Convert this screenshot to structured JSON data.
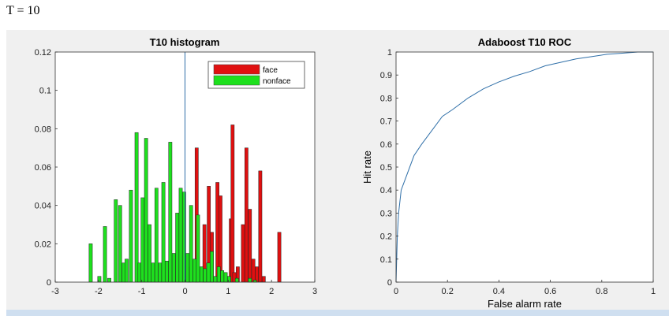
{
  "page": {
    "heading": "T = 10"
  },
  "colors": {
    "face": "#e01010",
    "nonface": "#1ee01e",
    "roc_line": "#2f6fa8",
    "figure_bg": "#f0f0f0"
  },
  "chart_data": [
    {
      "type": "bar",
      "title": "T10  histogram",
      "xlabel": "",
      "ylabel": "",
      "xlim": [
        -3,
        3
      ],
      "ylim": [
        0,
        0.12
      ],
      "xticks": [
        "-3",
        "-2",
        "-1",
        "0",
        "1",
        "2",
        "3"
      ],
      "yticks": [
        "0",
        "0.02",
        "0.04",
        "0.06",
        "0.08",
        "0.1",
        "0.12"
      ],
      "legend_position": "top-right",
      "threshold_x": 0,
      "bin_width": 0.077,
      "series": [
        {
          "name": "face",
          "color": "#e01010",
          "x": [
            0.1,
            0.27,
            0.45,
            0.55,
            0.62,
            0.75,
            0.82,
            0.9,
            0.98,
            1.06,
            1.1,
            1.14,
            1.22,
            1.34,
            1.42,
            1.5,
            1.58,
            1.66,
            1.74,
            1.82,
            2.18
          ],
          "values": [
            0.008,
            0.07,
            0.03,
            0.05,
            0.026,
            0.052,
            0.045,
            0.005,
            0.003,
            0.033,
            0.082,
            0.005,
            0.008,
            0.03,
            0.07,
            0.038,
            0.012,
            0.008,
            0.058,
            0.003,
            0.026
          ]
        },
        {
          "name": "nonface",
          "color": "#1ee01e",
          "x": [
            -2.18,
            -1.98,
            -1.85,
            -1.75,
            -1.6,
            -1.5,
            -1.42,
            -1.35,
            -1.25,
            -1.12,
            -1.05,
            -0.98,
            -0.9,
            -0.82,
            -0.74,
            -0.66,
            -0.58,
            -0.5,
            -0.42,
            -0.34,
            -0.26,
            -0.18,
            -0.1,
            -0.02,
            0.06,
            0.14,
            0.22,
            0.3,
            0.38,
            0.46,
            0.54,
            0.62,
            0.7,
            0.78,
            0.86,
            0.94,
            1.02,
            1.2,
            1.5,
            1.62
          ],
          "values": [
            0.02,
            0.003,
            0.029,
            0.002,
            0.043,
            0.04,
            0.01,
            0.012,
            0.048,
            0.078,
            0.01,
            0.044,
            0.075,
            0.03,
            0.01,
            0.049,
            0.01,
            0.052,
            0.011,
            0.073,
            0.015,
            0.036,
            0.049,
            0.047,
            0.015,
            0.04,
            0.012,
            0.035,
            0.008,
            0.007,
            0.01,
            0.016,
            0.003,
            0.008,
            0.006,
            0.005,
            0.003,
            0.002,
            0.002,
            0.001
          ]
        }
      ]
    },
    {
      "type": "line",
      "title": "Adaboost T10 ROC",
      "xlabel": "False alarm rate",
      "ylabel": "Hit rate",
      "xlim": [
        0,
        1
      ],
      "ylim": [
        0,
        1
      ],
      "xticks": [
        "0",
        "0.2",
        "0.4",
        "0.6",
        "0.8",
        "1"
      ],
      "yticks": [
        "0",
        "0.1",
        "0.2",
        "0.3",
        "0.4",
        "0.5",
        "0.6",
        "0.7",
        "0.8",
        "0.9",
        "1"
      ],
      "series": [
        {
          "name": "",
          "color": "#2f6fa8",
          "x": [
            0,
            0.005,
            0.01,
            0.02,
            0.04,
            0.07,
            0.1,
            0.14,
            0.18,
            0.22,
            0.28,
            0.34,
            0.4,
            0.46,
            0.52,
            0.58,
            0.64,
            0.7,
            0.76,
            0.82,
            0.88,
            0.94,
            1
          ],
          "y": [
            0,
            0.2,
            0.3,
            0.4,
            0.46,
            0.55,
            0.6,
            0.66,
            0.72,
            0.75,
            0.8,
            0.84,
            0.87,
            0.895,
            0.915,
            0.94,
            0.955,
            0.97,
            0.98,
            0.99,
            0.995,
            1.0,
            1.0
          ]
        }
      ]
    }
  ]
}
